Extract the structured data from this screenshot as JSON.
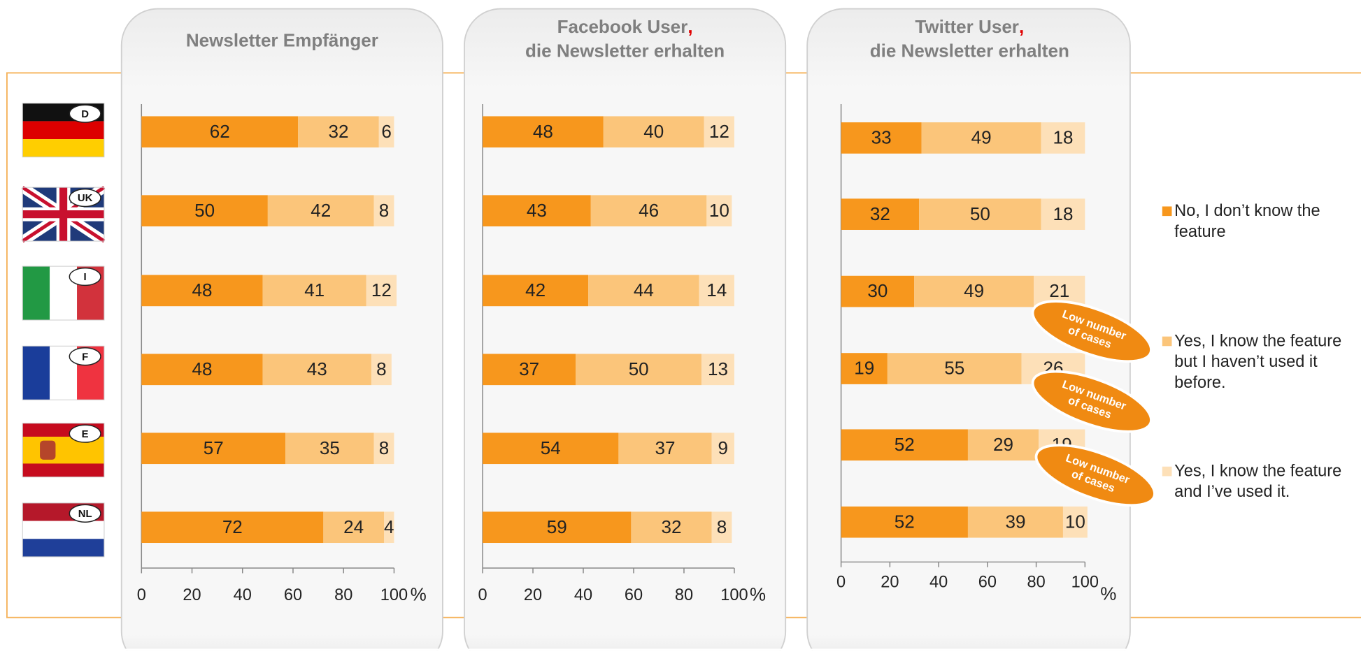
{
  "chart_data": {
    "type": "bar",
    "orientation": "horizontal",
    "stacked": true,
    "categories": [
      "D",
      "UK",
      "I",
      "F",
      "E",
      "NL"
    ],
    "series": [
      {
        "name": "No, I don’t know the feature",
        "color": "#f7971d"
      },
      {
        "name": "Yes, I know the feature but I haven’t used it before.",
        "color": "#fbc57a"
      },
      {
        "name": "Yes, I know the feature and I’ve used it.",
        "color": "#fde0b8"
      }
    ],
    "xlim": [
      0,
      100
    ],
    "xticks": [
      0,
      20,
      40,
      60,
      80,
      100
    ],
    "xlabel": "%",
    "panels": [
      {
        "title": [
          "Newsletter Empfänger"
        ],
        "series": [
          {
            "values": [
              62,
              50,
              48,
              48,
              57,
              72
            ]
          },
          {
            "values": [
              32,
              42,
              41,
              43,
              35,
              24
            ]
          },
          {
            "values": [
              6,
              8,
              12,
              8,
              8,
              4
            ]
          }
        ]
      },
      {
        "title": [
          "Facebook User,",
          "die Newsletter erhalten"
        ],
        "series": [
          {
            "values": [
              48,
              43,
              42,
              37,
              54,
              59
            ]
          },
          {
            "values": [
              40,
              46,
              44,
              50,
              37,
              32
            ]
          },
          {
            "values": [
              12,
              10,
              14,
              13,
              9,
              8
            ]
          }
        ]
      },
      {
        "title": [
          "Twitter User,",
          "die Newsletter erhalten"
        ],
        "series": [
          {
            "values": [
              33,
              32,
              30,
              19,
              52,
              52
            ]
          },
          {
            "values": [
              49,
              50,
              49,
              55,
              29,
              39
            ]
          },
          {
            "values": [
              18,
              18,
              21,
              26,
              19,
              10
            ]
          }
        ],
        "annotations": [
          {
            "lines": [
              "Low number",
              "of cases"
            ]
          },
          {
            "lines": [
              "Low number",
              "of cases"
            ]
          },
          {
            "lines": [
              "Low number",
              "of cases"
            ]
          }
        ]
      }
    ]
  }
}
